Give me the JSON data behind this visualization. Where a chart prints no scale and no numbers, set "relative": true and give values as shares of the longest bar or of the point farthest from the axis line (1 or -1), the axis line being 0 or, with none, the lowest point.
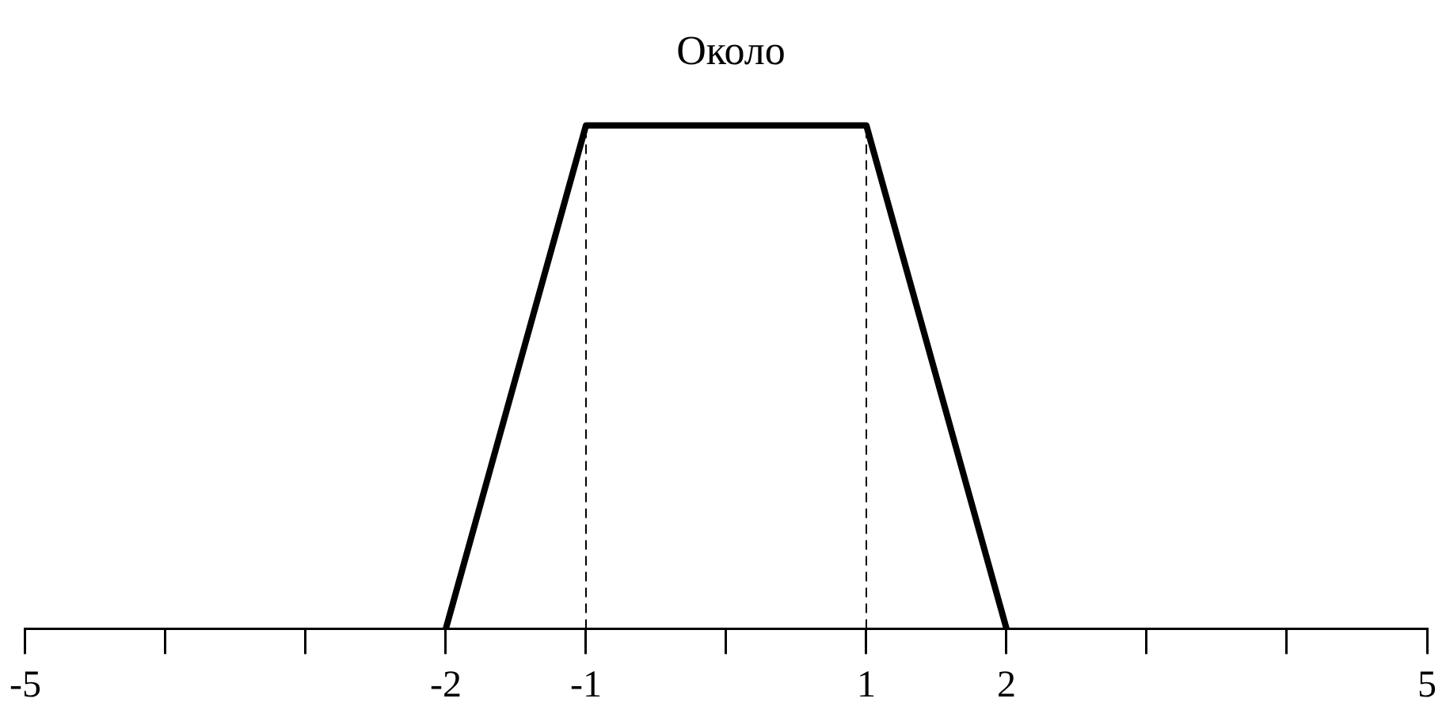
{
  "chart_data": {
    "type": "line",
    "title": "Около",
    "relative": true,
    "x": [
      -2,
      -1,
      1,
      2
    ],
    "series": [
      {
        "color": "#000000",
        "values": [
          0,
          1,
          1,
          0
        ]
      }
    ],
    "xlim": [
      -5,
      5
    ],
    "xticks": [
      -5,
      {
        "value": -4,
        "label": null
      },
      {
        "value": -3,
        "label": null
      },
      -2,
      -1,
      {
        "value": 0,
        "label": null
      },
      1,
      2,
      {
        "value": 3,
        "label": null
      },
      {
        "value": 4,
        "label": null
      },
      5
    ],
    "ref_lines": [
      {
        "axis": "x",
        "value": -1,
        "line_style": "dashed",
        "color": "#000000"
      },
      {
        "axis": "x",
        "value": 1,
        "line_style": "dashed",
        "color": "#000000"
      }
    ],
    "grid": false,
    "legend": false,
    "marker": "none",
    "line_style": "solid"
  }
}
